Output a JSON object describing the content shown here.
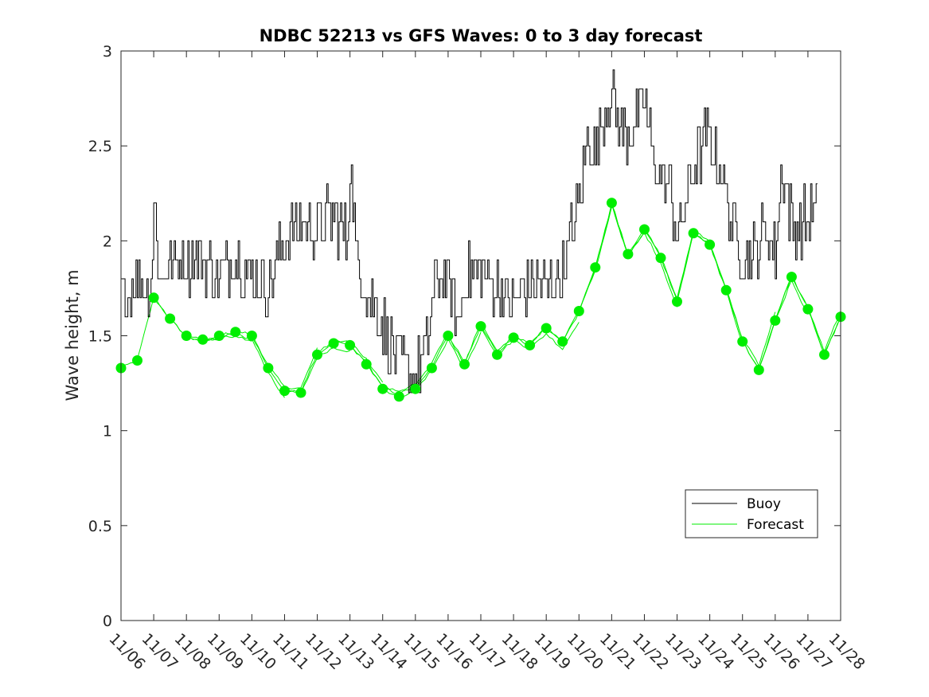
{
  "chart_data": {
    "type": "line",
    "title": "NDBC 52213 vs GFS Waves: 0 to 3 day forecast",
    "xlabel": "",
    "ylabel": "Wave height, m",
    "xlim": [
      0,
      22
    ],
    "ylim": [
      0,
      3
    ],
    "yticks": [
      0,
      0.5,
      1,
      1.5,
      2,
      2.5,
      3
    ],
    "ytick_labels": [
      "0",
      "0.5",
      "1",
      "1.5",
      "2",
      "2.5",
      "3"
    ],
    "xtick_labels": [
      "11/06",
      "11/07",
      "11/08",
      "11/09",
      "11/10",
      "11/11",
      "11/12",
      "11/13",
      "11/14",
      "11/15",
      "11/16",
      "11/17",
      "11/18",
      "11/19",
      "11/20",
      "11/21",
      "11/22",
      "11/23",
      "11/24",
      "11/25",
      "11/26",
      "11/27",
      "11/28"
    ],
    "legend": {
      "position": "bottom-right",
      "entries": [
        "Buoy",
        "Forecast"
      ]
    },
    "colors": {
      "buoy": "#000000",
      "forecast": "#00ee00",
      "axes": "#262626"
    },
    "series": [
      {
        "name": "Buoy",
        "x": [
          0,
          0.5,
          0.9,
          1.0,
          1.2,
          1.5,
          2.0,
          2.5,
          3.0,
          3.5,
          4.0,
          4.5,
          5.0,
          5.5,
          6.0,
          6.5,
          6.9,
          7.0,
          7.2,
          7.5,
          8.0,
          8.3,
          8.5,
          9.0,
          9.3,
          9.6,
          10.0,
          10.3,
          10.5,
          11.0,
          11.5,
          12.0,
          12.5,
          13.0,
          13.5,
          14.0,
          14.3,
          14.5,
          14.9,
          15.0,
          15.3,
          15.7,
          16.0,
          16.3,
          16.8,
          17.0,
          17.5,
          17.9,
          18.3,
          18.6,
          19.0,
          19.3,
          19.6,
          20.0,
          20.2,
          20.5,
          20.8,
          21.0,
          21.3
        ],
        "values": [
          1.7,
          1.8,
          1.75,
          2.2,
          1.8,
          1.9,
          1.9,
          1.9,
          1.8,
          1.95,
          1.8,
          1.75,
          2.0,
          2.1,
          2.05,
          2.15,
          2.0,
          2.4,
          1.9,
          1.75,
          1.55,
          1.4,
          1.35,
          1.3,
          1.4,
          1.8,
          1.8,
          1.5,
          1.8,
          1.85,
          1.75,
          1.65,
          1.8,
          1.75,
          1.85,
          2.2,
          2.6,
          2.45,
          2.75,
          2.8,
          2.55,
          2.6,
          2.75,
          2.4,
          2.25,
          2.0,
          2.4,
          2.55,
          2.4,
          2.15,
          1.95,
          1.9,
          2.05,
          1.95,
          2.4,
          2.1,
          2.1,
          2.1,
          2.2
        ]
      },
      {
        "name": "Forecast",
        "x": [
          0,
          0.5,
          1.0,
          1.5,
          2.0,
          2.5,
          3.0,
          3.5,
          4.0,
          4.5,
          5.0,
          5.5,
          6.0,
          6.5,
          7.0,
          7.5,
          8.0,
          8.5,
          9.0,
          9.5,
          10.0,
          10.5,
          11.0,
          11.5,
          12.0,
          12.5,
          13.0,
          13.5,
          14.0,
          14.5,
          15.0,
          15.5,
          16.0,
          16.5,
          17.0,
          17.5,
          18.0,
          18.5,
          19.0,
          19.5,
          20.0,
          20.5,
          21.0,
          21.5,
          22.0
        ],
        "values": [
          1.33,
          1.37,
          1.7,
          1.59,
          1.5,
          1.48,
          1.5,
          1.52,
          1.5,
          1.33,
          1.21,
          1.2,
          1.4,
          1.46,
          1.45,
          1.35,
          1.22,
          1.18,
          1.22,
          1.33,
          1.5,
          1.35,
          1.55,
          1.4,
          1.49,
          1.45,
          1.54,
          1.47,
          1.63,
          1.86,
          2.2,
          1.93,
          2.06,
          1.91,
          1.68,
          2.04,
          1.98,
          1.74,
          1.47,
          1.32,
          1.58,
          1.81,
          1.64,
          1.4,
          1.6
        ]
      }
    ]
  }
}
